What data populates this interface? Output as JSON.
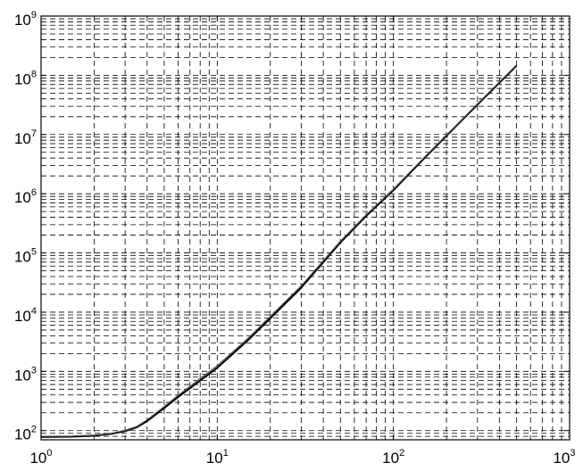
{
  "chart_data": {
    "type": "line",
    "title": "",
    "xlabel": "",
    "ylabel": "",
    "xscale": "log",
    "yscale": "log",
    "xlim": [
      1,
      1000
    ],
    "ylim": [
      70,
      1000000000
    ],
    "grid": "on (major and minor, dashed)",
    "legend": "none",
    "x_tick_labels": [
      {
        "value": 1,
        "base": "10",
        "exp": "0"
      },
      {
        "value": 10,
        "base": "10",
        "exp": "1"
      },
      {
        "value": 100,
        "base": "10",
        "exp": "2"
      },
      {
        "value": 1000,
        "base": "10",
        "exp": "3"
      }
    ],
    "y_tick_labels": [
      {
        "value": 100,
        "base": "10",
        "exp": "2"
      },
      {
        "value": 1000,
        "base": "10",
        "exp": "3"
      },
      {
        "value": 10000,
        "base": "10",
        "exp": "4"
      },
      {
        "value": 100000,
        "base": "10",
        "exp": "5"
      },
      {
        "value": 1000000,
        "base": "10",
        "exp": "6"
      },
      {
        "value": 10000000,
        "base": "10",
        "exp": "7"
      },
      {
        "value": 100000000,
        "base": "10",
        "exp": "8"
      },
      {
        "value": 1000000000,
        "base": "10",
        "exp": "9"
      }
    ],
    "series": [
      {
        "color": "#000000",
        "x": [
          1,
          1.5,
          2,
          2.5,
          3,
          3.5,
          4,
          5,
          6,
          7,
          8,
          10,
          15,
          20,
          30,
          50,
          70,
          100,
          150,
          200,
          300,
          500
        ],
        "y": [
          78,
          79,
          82,
          88,
          98,
          114,
          145,
          240,
          370,
          520,
          700,
          1150,
          3400,
          7900,
          26000,
          150000,
          420000,
          1150000,
          4000000,
          9500000,
          32000000,
          145000000
        ]
      },
      {
        "color": "#555555",
        "x": [
          1,
          1.5,
          2,
          2.5,
          3,
          3.5,
          4,
          5,
          6,
          7,
          8,
          10,
          15,
          20,
          30,
          50,
          70,
          100,
          150,
          200,
          300,
          500
        ],
        "y": [
          80,
          81,
          84,
          90,
          101,
          118,
          152,
          255,
          395,
          560,
          760,
          1250,
          3650,
          8500,
          28000,
          158000,
          440000,
          1200000,
          4150000,
          9800000,
          33000000,
          150000000
        ]
      }
    ]
  }
}
